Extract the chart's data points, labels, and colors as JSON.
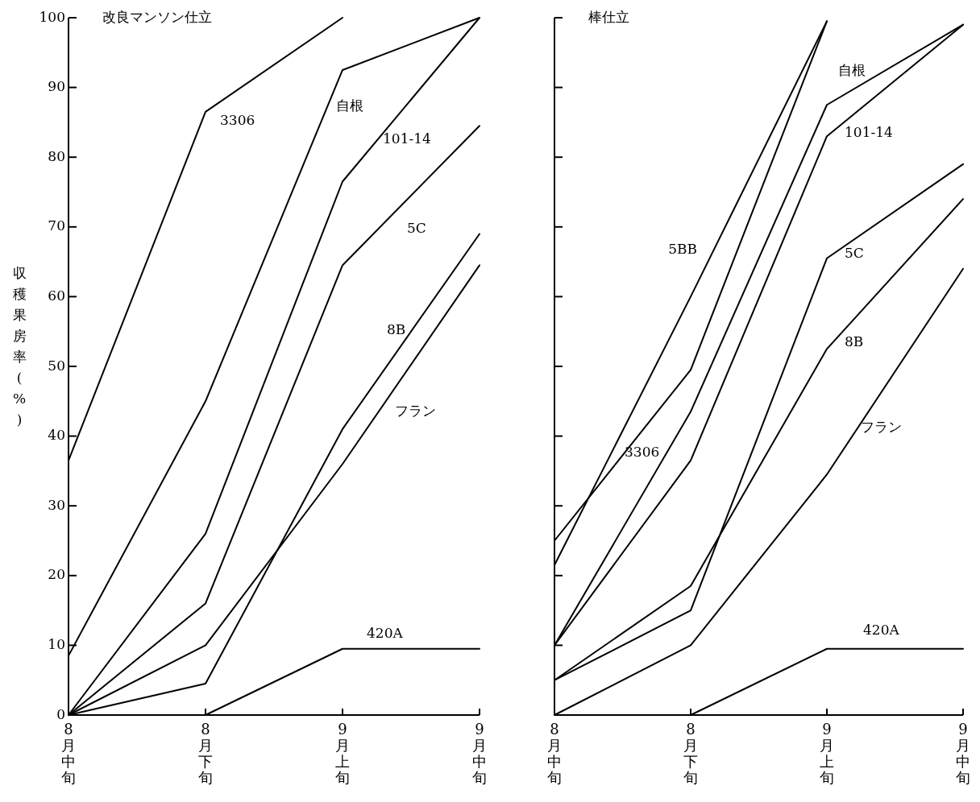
{
  "chart_data": [
    {
      "type": "line",
      "title": "改良マンソン仕立",
      "ylabel": "収穫果房率(%)",
      "categories": [
        "8月中旬",
        "8月下旬",
        "9月上旬",
        "9月中旬"
      ],
      "ylim": [
        0,
        100
      ],
      "yticks": [
        0,
        10,
        20,
        30,
        40,
        50,
        60,
        70,
        80,
        90,
        100
      ],
      "series": [
        {
          "name": "3306",
          "color": "#000000",
          "values": [
            36.5,
            86.5,
            100,
            null
          ]
        },
        {
          "name": "自根",
          "color": "#000000",
          "values": [
            8.5,
            45,
            92.5,
            100
          ]
        },
        {
          "name": "101-14",
          "color": "#000000",
          "values": [
            0,
            26,
            76.5,
            100
          ]
        },
        {
          "name": "5C",
          "color": "#000000",
          "values": [
            0,
            16,
            64.5,
            84.5
          ]
        },
        {
          "name": "8B",
          "color": "#000000",
          "values": [
            0,
            4.5,
            41,
            69
          ]
        },
        {
          "name": "フラン",
          "color": "#000000",
          "values": [
            0,
            10,
            36,
            64.5
          ]
        },
        {
          "name": "420A",
          "color": "#000000",
          "values": [
            null,
            0,
            9.5,
            9.5
          ]
        }
      ]
    },
    {
      "type": "line",
      "title": "棒仕立",
      "categories": [
        "8月中旬",
        "8月下旬",
        "9月上旬",
        "9月中旬"
      ],
      "ylim": [
        0,
        100
      ],
      "yticks": [
        0,
        10,
        20,
        30,
        40,
        50,
        60,
        70,
        80,
        90,
        100
      ],
      "tick_labels": "x",
      "series": [
        {
          "name": "5BB",
          "color": "#000000",
          "values": [
            21.5,
            60,
            99.5,
            null
          ]
        },
        {
          "name": "3306",
          "color": "#000000",
          "values": [
            25,
            49.5,
            99.5,
            null
          ]
        },
        {
          "name": "自根",
          "color": "#000000",
          "values": [
            10,
            43.5,
            87.5,
            99
          ]
        },
        {
          "name": "101-14",
          "color": "#000000",
          "values": [
            10,
            36.5,
            83,
            99
          ]
        },
        {
          "name": "5C",
          "color": "#000000",
          "values": [
            5,
            15,
            65.5,
            79
          ]
        },
        {
          "name": "8B",
          "color": "#000000",
          "values": [
            5,
            18.5,
            52.5,
            74
          ]
        },
        {
          "name": "フラン",
          "color": "#000000",
          "values": [
            0,
            10,
            34.5,
            64
          ]
        },
        {
          "name": "420A",
          "color": "#000000",
          "values": [
            null,
            0,
            9.5,
            9.5
          ]
        }
      ]
    }
  ]
}
